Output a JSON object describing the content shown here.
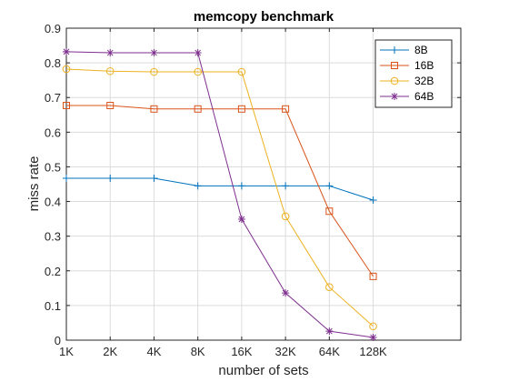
{
  "chart_data": {
    "type": "line",
    "title": "memcopy benchmark",
    "xlabel": "number of sets",
    "ylabel": "miss rate",
    "categories": [
      "1K",
      "2K",
      "4K",
      "8K",
      "16K",
      "32K",
      "64K",
      "128K"
    ],
    "xlim": [
      0,
      9
    ],
    "ylim": [
      0,
      0.9
    ],
    "yticks": [
      0,
      0.1,
      0.2,
      0.3,
      0.4,
      0.5,
      0.6,
      0.7,
      0.8,
      0.9
    ],
    "grid": true,
    "legend_position": "top-right",
    "series": [
      {
        "name": "8B",
        "color": "#0072BD",
        "marker": "plus",
        "values": [
          0.467,
          0.467,
          0.467,
          0.445,
          0.445,
          0.445,
          0.445,
          0.404
        ]
      },
      {
        "name": "16B",
        "color": "#D95319",
        "marker": "square",
        "values": [
          0.677,
          0.677,
          0.667,
          0.667,
          0.667,
          0.667,
          0.372,
          0.184
        ]
      },
      {
        "name": "32B",
        "color": "#EDB120",
        "marker": "circle",
        "values": [
          0.782,
          0.776,
          0.774,
          0.774,
          0.774,
          0.357,
          0.153,
          0.04
        ]
      },
      {
        "name": "64B",
        "color": "#7E2F8E",
        "marker": "asterisk",
        "values": [
          0.832,
          0.829,
          0.829,
          0.829,
          0.349,
          0.136,
          0.026,
          0.008
        ]
      }
    ]
  }
}
